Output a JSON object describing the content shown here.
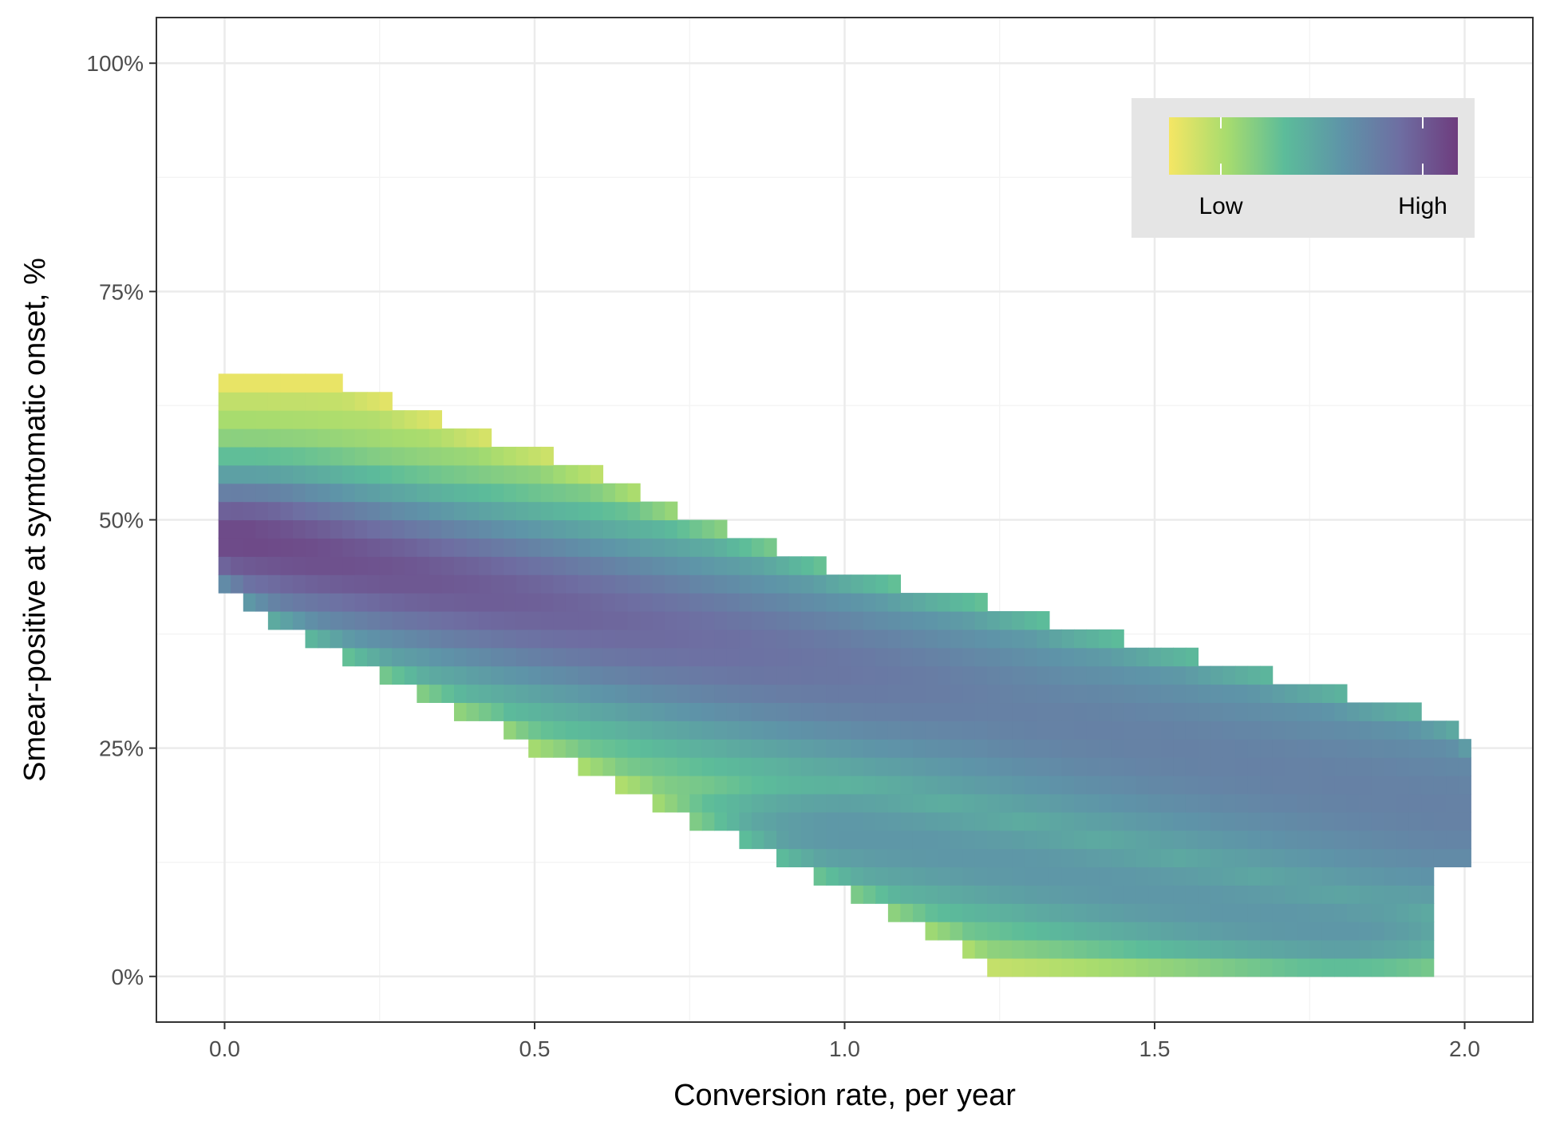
{
  "chart_data": {
    "type": "heatmap",
    "xlabel": "Conversion rate, per year",
    "ylabel": "Smear-positive at symtomatic onset, %",
    "xlim": [
      -0.11,
      2.11
    ],
    "ylim": [
      -5,
      105
    ],
    "x_ticks": [
      {
        "value": 0.0,
        "label": "0.0"
      },
      {
        "value": 0.5,
        "label": "0.5"
      },
      {
        "value": 1.0,
        "label": "1.0"
      },
      {
        "value": 1.5,
        "label": "1.5"
      },
      {
        "value": 2.0,
        "label": "2.0"
      }
    ],
    "y_ticks": [
      {
        "value": 0,
        "label": "0%"
      },
      {
        "value": 25,
        "label": "25%"
      },
      {
        "value": 50,
        "label": "50%"
      },
      {
        "value": 75,
        "label": "75%"
      },
      {
        "value": 100,
        "label": "100%"
      }
    ],
    "x_minor": [
      0.25,
      0.75,
      1.25,
      1.75
    ],
    "y_minor": [
      12.5,
      37.5,
      62.5,
      87.5
    ],
    "grid": true,
    "density_ridge": {
      "description_units": "x in per year, y in percent; density value 0 (Low) to 1 (High)",
      "x_step": 0.02,
      "y_step": 2.0,
      "top_edge": [
        [
          0.0,
          65
        ],
        [
          0.19,
          65
        ],
        [
          0.27,
          63
        ],
        [
          0.35,
          61
        ],
        [
          0.43,
          59
        ],
        [
          0.53,
          57
        ],
        [
          0.61,
          55
        ],
        [
          0.67,
          53
        ],
        [
          0.73,
          51
        ],
        [
          0.81,
          49
        ],
        [
          0.89,
          47
        ],
        [
          0.97,
          45
        ],
        [
          1.09,
          43
        ],
        [
          1.23,
          41
        ],
        [
          1.33,
          39
        ],
        [
          1.45,
          37
        ],
        [
          1.57,
          35
        ],
        [
          1.69,
          33
        ],
        [
          1.81,
          31
        ],
        [
          1.93,
          29
        ],
        [
          1.99,
          27
        ],
        [
          2.01,
          25
        ]
      ],
      "bottom_edge": [
        [
          0.0,
          43
        ],
        [
          0.03,
          41
        ],
        [
          0.07,
          39
        ],
        [
          0.13,
          37
        ],
        [
          0.19,
          35
        ],
        [
          0.25,
          33
        ],
        [
          0.31,
          31
        ],
        [
          0.37,
          29
        ],
        [
          0.45,
          27
        ],
        [
          0.49,
          25
        ],
        [
          0.57,
          23
        ],
        [
          0.63,
          21
        ],
        [
          0.69,
          19
        ],
        [
          0.75,
          17
        ],
        [
          0.83,
          15
        ],
        [
          0.89,
          13
        ],
        [
          0.95,
          11
        ],
        [
          1.01,
          9
        ],
        [
          1.07,
          7
        ],
        [
          1.13,
          5
        ],
        [
          1.19,
          3
        ],
        [
          1.23,
          1
        ],
        [
          1.93,
          1
        ]
      ],
      "right_bottom_edge": [
        [
          1.93,
          1
        ],
        [
          1.95,
          3
        ],
        [
          1.95,
          5
        ],
        [
          1.93,
          9
        ],
        [
          1.95,
          11
        ],
        [
          1.99,
          13
        ],
        [
          2.01,
          15
        ],
        [
          2.01,
          27
        ]
      ],
      "ridges": [
        {
          "name": "main",
          "start": [
            0.02,
            48
          ],
          "end": [
            2.0,
            18
          ],
          "peak": [
            0.12,
            48
          ],
          "peak_value": 0.98,
          "tail_value": 0.68
        },
        {
          "name": "lower",
          "start": [
            1.0,
            16
          ],
          "end": [
            1.8,
            5
          ],
          "peak": [
            1.5,
            6
          ],
          "peak_value": 0.55
        }
      ]
    },
    "legend": {
      "position": "top-right",
      "low_label": "Low",
      "high_label": "High",
      "colors": [
        "#f5e664",
        "#a8dc6e",
        "#5cbc9a",
        "#5e94a8",
        "#6e6ea2",
        "#6e3c7e"
      ]
    },
    "colors": {
      "panel_border": "#333333",
      "grid_major": "#ebebeb",
      "grid_minor": "#f4f4f4",
      "legend_background": "#e5e5e5"
    }
  }
}
